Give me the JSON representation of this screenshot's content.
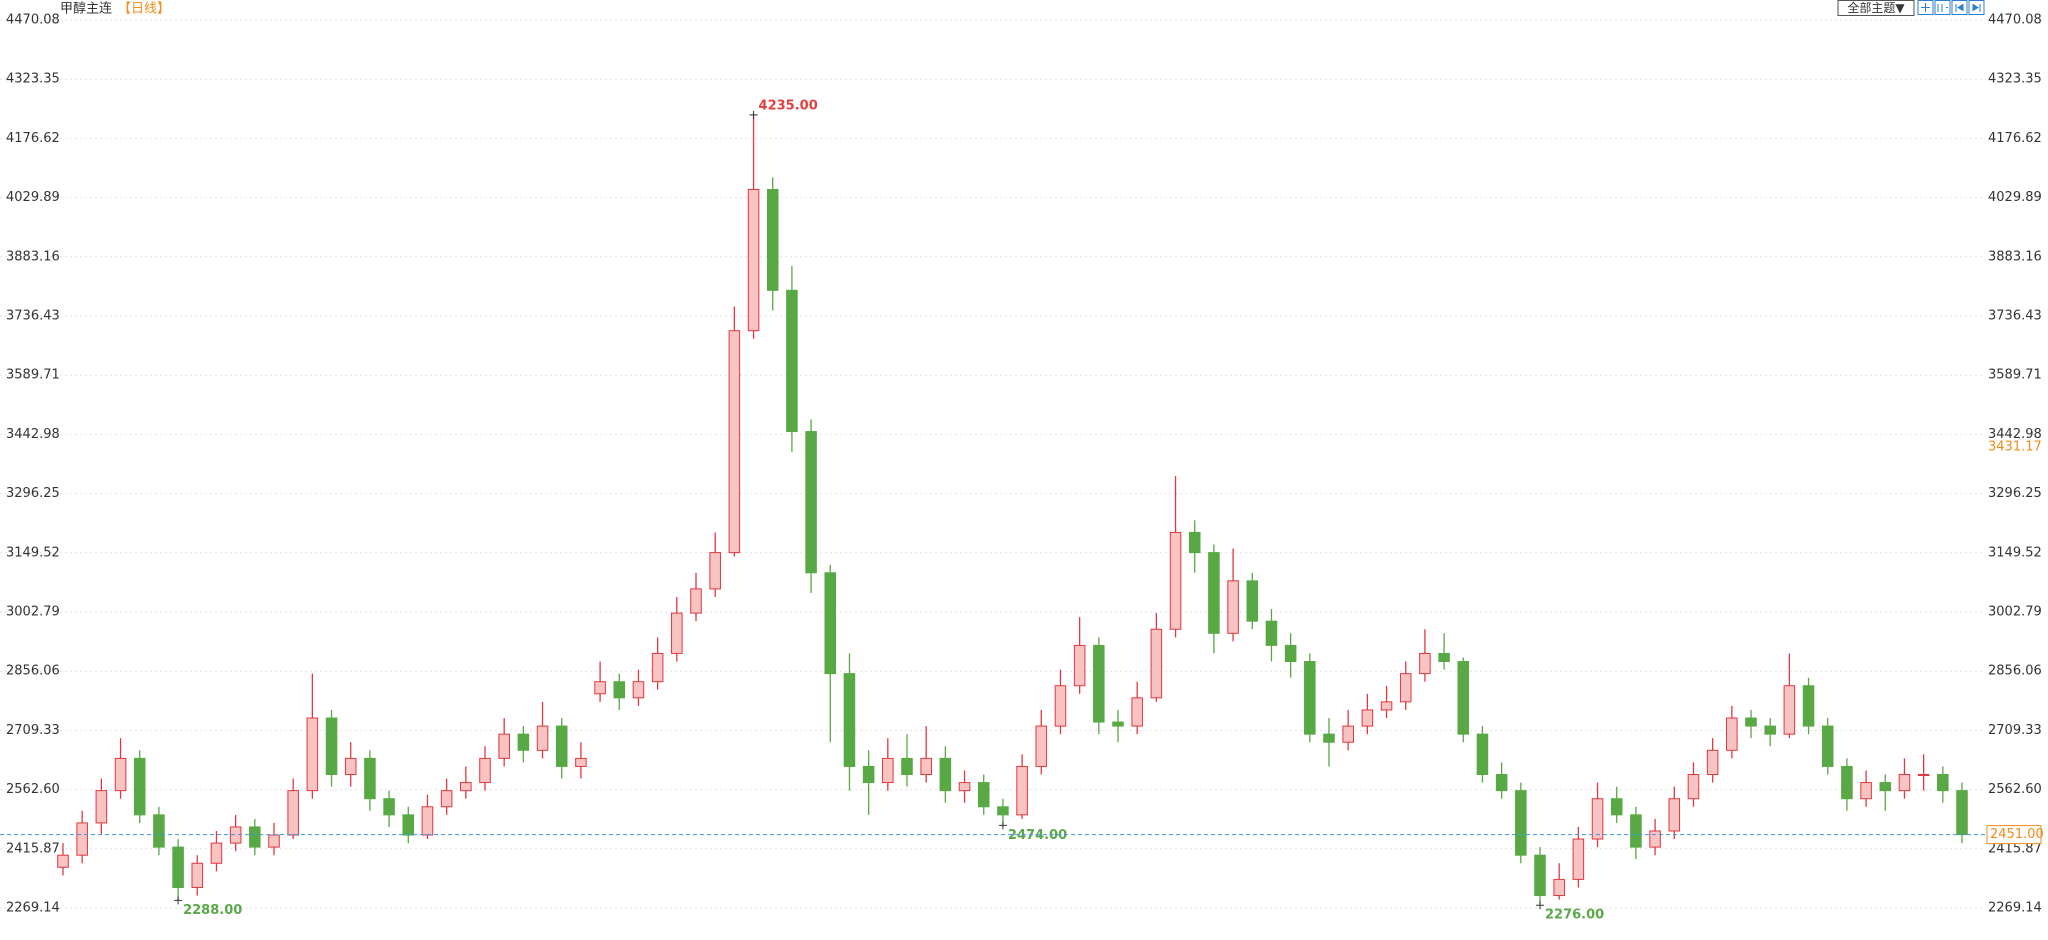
{
  "chart_data": {
    "type": "candlestick",
    "title": "甲醇主连",
    "period": "【日线】",
    "theme_button": "全部主题▼",
    "ylim": [
      2189.8,
      4519.65
    ],
    "yticks": [
      4470.08,
      4323.35,
      4176.62,
      4029.89,
      3883.16,
      3736.43,
      3589.71,
      3442.98,
      3296.25,
      3149.52,
      3002.79,
      2856.06,
      2709.33,
      {
        "value": 2562.6,
        "label": "2562.60"
      },
      2415.87,
      2269.14
    ],
    "grid": true,
    "up_color": "#e0383e",
    "up_fill": "#f7c3c3",
    "down_color": "#58a845",
    "open": [
      2370,
      2400,
      2480,
      2560,
      2640,
      2500,
      2420,
      2320,
      2380,
      2430,
      2470,
      2420,
      2450,
      2560,
      2740,
      2600,
      2640,
      2540,
      2500,
      2450,
      2520,
      2560,
      2580,
      2640,
      2700,
      2660,
      2720,
      2620,
      2800,
      2830,
      2790,
      2830,
      2900,
      3000,
      3060,
      3150,
      3700,
      4050,
      3800,
      3450,
      3100,
      2850,
      2620,
      2580,
      2640,
      2600,
      2640,
      2560,
      2580,
      2520,
      2500,
      2620,
      2720,
      2820,
      2920,
      2730,
      2720,
      2790,
      2960,
      3200,
      3150,
      2950,
      3080,
      2980,
      2920,
      2880,
      2700,
      2680,
      2720,
      2760,
      2780,
      2850,
      2900,
      2880,
      2700,
      2600,
      2560,
      2400,
      2300,
      2340,
      2440,
      2540,
      2500,
      2420,
      2460,
      2540,
      2600,
      2660,
      2740,
      2720,
      2700,
      2820,
      2720,
      2620,
      2540,
      2580,
      2560,
      2600,
      2600,
      2560
    ],
    "high": [
      2430,
      2510,
      2590,
      2690,
      2660,
      2520,
      2440,
      2400,
      2460,
      2500,
      2490,
      2480,
      2590,
      2850,
      2760,
      2680,
      2660,
      2560,
      2520,
      2550,
      2590,
      2620,
      2670,
      2740,
      2720,
      2780,
      2740,
      2680,
      2880,
      2850,
      2860,
      2940,
      3040,
      3100,
      3200,
      3760,
      4235,
      4080,
      3860,
      3480,
      3120,
      2900,
      2660,
      2690,
      2700,
      2720,
      2670,
      2610,
      2600,
      2540,
      2650,
      2760,
      2860,
      2990,
      2940,
      2760,
      2830,
      3000,
      3340,
      3230,
      3170,
      3160,
      3100,
      3010,
      2950,
      2900,
      2740,
      2760,
      2800,
      2820,
      2880,
      2960,
      2950,
      2890,
      2720,
      2630,
      2580,
      2420,
      2380,
      2470,
      2580,
      2570,
      2520,
      2490,
      2570,
      2630,
      2690,
      2770,
      2760,
      2740,
      2900,
      2840,
      2740,
      2640,
      2610,
      2600,
      2640,
      2650,
      2620,
      2580
    ],
    "low": [
      2350,
      2380,
      2450,
      2540,
      2480,
      2400,
      2288,
      2300,
      2360,
      2410,
      2400,
      2400,
      2440,
      2540,
      2570,
      2570,
      2510,
      2470,
      2430,
      2440,
      2500,
      2540,
      2560,
      2620,
      2630,
      2640,
      2590,
      2590,
      2780,
      2760,
      2770,
      2810,
      2880,
      2980,
      3040,
      3140,
      3680,
      3750,
      3400,
      3050,
      2680,
      2560,
      2500,
      2560,
      2570,
      2580,
      2530,
      2530,
      2500,
      2474,
      2490,
      2600,
      2700,
      2800,
      2700,
      2680,
      2700,
      2780,
      2940,
      3100,
      2900,
      2930,
      2960,
      2880,
      2840,
      2680,
      2620,
      2660,
      2700,
      2740,
      2760,
      2830,
      2860,
      2680,
      2580,
      2540,
      2380,
      2276,
      2290,
      2320,
      2420,
      2480,
      2390,
      2400,
      2440,
      2520,
      2580,
      2640,
      2690,
      2670,
      2690,
      2700,
      2600,
      2510,
      2520,
      2510,
      2540,
      2560,
      2530,
      2430
    ],
    "close": [
      2400,
      2480,
      2560,
      2640,
      2500,
      2420,
      2320,
      2380,
      2430,
      2470,
      2420,
      2450,
      2560,
      2740,
      2600,
      2640,
      2540,
      2500,
      2450,
      2520,
      2560,
      2580,
      2640,
      2700,
      2660,
      2720,
      2620,
      2640,
      2830,
      2790,
      2830,
      2900,
      3000,
      3060,
      3150,
      3700,
      4050,
      3800,
      3450,
      3100,
      2850,
      2620,
      2580,
      2640,
      2600,
      2640,
      2560,
      2580,
      2520,
      2500,
      2620,
      2720,
      2820,
      2920,
      2730,
      2720,
      2790,
      2960,
      3200,
      3150,
      2950,
      3080,
      2980,
      2920,
      2880,
      2700,
      2680,
      2720,
      2760,
      2780,
      2850,
      2900,
      2880,
      2700,
      2600,
      2560,
      2400,
      2300,
      2340,
      2440,
      2540,
      2500,
      2420,
      2460,
      2540,
      2600,
      2660,
      2740,
      2720,
      2700,
      2820,
      2720,
      2620,
      2540,
      2580,
      2560,
      2600,
      2600,
      2560,
      2451
    ],
    "annotations": [
      {
        "label": "4235.00",
        "value": 4235,
        "kind": "high"
      },
      {
        "label": "2288.00",
        "value": 2288,
        "kind": "low"
      },
      {
        "label": "2474.00",
        "value": 2474,
        "kind": "low"
      },
      {
        "label": "2276.00",
        "value": 2276,
        "kind": "low"
      }
    ],
    "last_price": {
      "value": 2451,
      "label": "2451.00"
    },
    "cursor_price": {
      "value": 3431.17,
      "label": "3431.17"
    }
  }
}
